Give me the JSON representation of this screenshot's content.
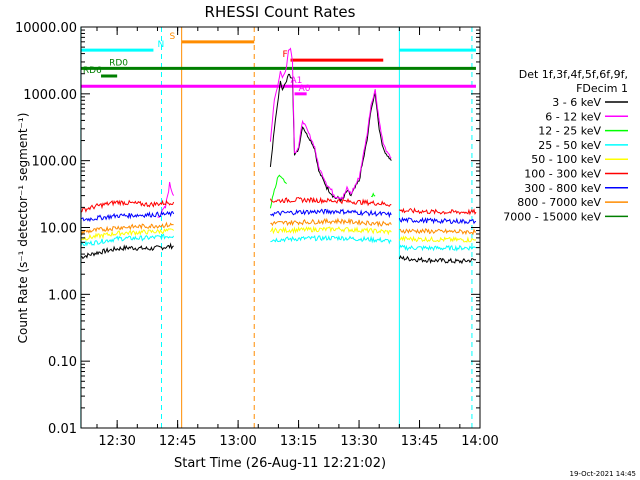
{
  "chart_data": {
    "type": "line",
    "title": "RHESSI Count Rates",
    "xlabel": "Start Time (26-Aug-11 12:21:02)",
    "ylabel": "Count Rate (s⁻¹ detector⁻¹ segment⁻¹)",
    "yscale": "log",
    "ylim": [
      0.01,
      10000
    ],
    "xlim": [
      "12:21:02",
      "14:00:00"
    ],
    "x_ticks": [
      "12:30",
      "12:45",
      "13:00",
      "13:15",
      "13:30",
      "13:45",
      "14:00"
    ],
    "y_ticks": [
      "0.01",
      "0.10",
      "1.00",
      "10.00",
      "100.00",
      "1000.00",
      "10000.00"
    ],
    "legend_header": [
      "Det 1f,3f,4f,5f,6f,9f,",
      "FDecim 1"
    ],
    "legend_position": "right",
    "grid": false,
    "series": [
      {
        "name": "3 - 6 keV",
        "color": "#000000",
        "segments": [
          {
            "x": [
              "12:21",
              "12:25",
              "12:30",
              "12:33",
              "12:38",
              "12:42",
              "12:44"
            ],
            "y": [
              3.6,
              4.2,
              4.8,
              5.0,
              4.8,
              5.1,
              5.3
            ]
          },
          {
            "x": [
              "13:08",
              "13:09",
              "13:10",
              "13:10.5",
              "13:11",
              "13:11.5",
              "13:12",
              "13:12.5",
              "13:13",
              "13:13.5",
              "13:14",
              "13:15",
              "13:16",
              "13:17",
              "13:18",
              "13:19",
              "13:20",
              "13:22",
              "13:24",
              "13:26",
              "13:27",
              "13:28",
              "13:30",
              "13:32",
              "13:33",
              "13:34",
              "13:35",
              "13:36",
              "13:37",
              "13:38"
            ],
            "y": [
              80,
              300,
              900,
              1500,
              1200,
              1350,
              1500,
              2000,
              1800,
              1800,
              120,
              150,
              330,
              250,
              200,
              150,
              70,
              40,
              28,
              26,
              35,
              30,
              50,
              200,
              600,
              1000,
              300,
              150,
              120,
              100
            ]
          },
          {
            "x": [
              "13:40",
              "13:45",
              "13:50",
              "13:55",
              "13:59"
            ],
            "y": [
              3.5,
              3.3,
              3.2,
              3.1,
              3.3
            ]
          }
        ]
      },
      {
        "name": "6 - 12 keV",
        "color": "#ff00ff",
        "segments": [
          {
            "x": [
              "12:40",
              "12:42",
              "12:43",
              "12:44"
            ],
            "y": [
              14,
              20,
              45,
              30
            ]
          },
          {
            "x": [
              "13:08",
              "13:09",
              "13:10",
              "13:10.5",
              "13:11",
              "13:11.5",
              "13:12",
              "13:12.5",
              "13:13",
              "13:13.5",
              "13:14",
              "13:15",
              "13:16",
              "13:17",
              "13:18",
              "13:19",
              "13:20",
              "13:22",
              "13:24",
              "13:26",
              "13:27",
              "13:28",
              "13:30",
              "13:32",
              "13:33",
              "13:34",
              "13:35",
              "13:36",
              "13:37",
              "13:38"
            ],
            "y": [
              200,
              800,
              1500,
              2200,
              1800,
              2000,
              2500,
              4500,
              5000,
              3000,
              130,
              160,
              400,
              300,
              220,
              160,
              80,
              45,
              30,
              28,
              38,
              32,
              55,
              250,
              700,
              1150,
              400,
              180,
              130,
              110
            ]
          }
        ]
      },
      {
        "name": "12 - 25 keV",
        "color": "#00ff00",
        "segments": [
          {
            "x": [
              "13:08",
              "13:09",
              "13:10",
              "13:11",
              "13:12"
            ],
            "y": [
              20,
              35,
              60,
              55,
              45
            ]
          },
          {
            "x": [
              "13:33",
              "13:33.5",
              "13:34"
            ],
            "y": [
              30,
              32,
              30
            ]
          }
        ]
      },
      {
        "name": "25 - 50 keV",
        "color": "#00ffff",
        "segments": [
          {
            "x": [
              "12:21",
              "12:30",
              "12:38",
              "12:44"
            ],
            "y": [
              5.5,
              6.8,
              7.0,
              7.5
            ]
          },
          {
            "x": [
              "13:08",
              "13:15",
              "13:25",
              "13:35",
              "13:38"
            ],
            "y": [
              6.5,
              6.8,
              7.0,
              6.5,
              6.2
            ]
          },
          {
            "x": [
              "13:40",
              "13:50",
              "13:59"
            ],
            "y": [
              5.0,
              4.9,
              5.0
            ]
          }
        ]
      },
      {
        "name": "50 - 100 keV",
        "color": "#ffff00",
        "segments": [
          {
            "x": [
              "12:21",
              "12:30",
              "12:38",
              "12:44"
            ],
            "y": [
              6.8,
              8.2,
              8.6,
              9.0
            ]
          },
          {
            "x": [
              "13:08",
              "13:15",
              "13:25",
              "13:35",
              "13:38"
            ],
            "y": [
              9.0,
              9.2,
              9.5,
              8.8,
              8.5
            ]
          },
          {
            "x": [
              "13:40",
              "13:50",
              "13:59"
            ],
            "y": [
              6.8,
              6.6,
              6.5
            ]
          }
        ]
      },
      {
        "name": "100 - 300 keV",
        "color": "#ff0000",
        "segments": [
          {
            "x": [
              "12:21",
              "12:25",
              "12:30",
              "12:38",
              "12:44"
            ],
            "y": [
              18,
              21,
              24,
              22,
              24
            ]
          },
          {
            "x": [
              "13:08",
              "13:15",
              "13:25",
              "13:35",
              "13:38"
            ],
            "y": [
              25,
              26,
              25,
              23,
              22
            ]
          },
          {
            "x": [
              "13:40",
              "13:50",
              "13:59"
            ],
            "y": [
              18,
              17,
              17
            ]
          }
        ]
      },
      {
        "name": "300 - 800 keV",
        "color": "#0000ff",
        "segments": [
          {
            "x": [
              "12:21",
              "12:30",
              "12:38",
              "12:44"
            ],
            "y": [
              13,
              15,
              15.5,
              16
            ]
          },
          {
            "x": [
              "13:08",
              "13:15",
              "13:25",
              "13:35",
              "13:38"
            ],
            "y": [
              16,
              17,
              17.5,
              16,
              15.5
            ]
          },
          {
            "x": [
              "13:40",
              "13:50",
              "13:59"
            ],
            "y": [
              13,
              12.5,
              12.3
            ]
          }
        ]
      },
      {
        "name": "800 - 7000 keV",
        "color": "#ff8c00",
        "segments": [
          {
            "x": [
              "12:21",
              "12:30",
              "12:38",
              "12:44"
            ],
            "y": [
              8.5,
              10,
              10.5,
              11
            ]
          },
          {
            "x": [
              "13:08",
              "13:15",
              "13:25",
              "13:35",
              "13:38"
            ],
            "y": [
              11.5,
              12,
              12.5,
              11.5,
              11
            ]
          },
          {
            "x": [
              "13:40",
              "13:50",
              "13:59"
            ],
            "y": [
              9,
              8.7,
              8.6
            ]
          }
        ]
      },
      {
        "name": "7000 - 15000 keV",
        "color": "#007f00",
        "segments": []
      }
    ],
    "markers": {
      "vertical_lines": [
        {
          "x": "12:21",
          "color": "#00ffff",
          "style": "solid"
        },
        {
          "x": "12:41",
          "color": "#00ffff",
          "style": "dashed"
        },
        {
          "x": "12:46",
          "color": "#ff8c00",
          "style": "solid"
        },
        {
          "x": "13:04",
          "color": "#ff8c00",
          "style": "dashed"
        },
        {
          "x": "13:40",
          "color": "#00ffff",
          "style": "solid"
        },
        {
          "x": "13:58",
          "color": "#00ffff",
          "style": "dashed"
        }
      ],
      "horizontal_bars": [
        {
          "label": "N",
          "color": "#00ffff",
          "x1": "12:21",
          "x2": "12:39",
          "y": 4500,
          "label_x": "12:40"
        },
        {
          "label": "",
          "color": "#00ffff",
          "x1": "13:40",
          "x2": "13:59",
          "y": 4500,
          "label_x": ""
        },
        {
          "label": "S",
          "color": "#ff8c00",
          "x1": "12:46",
          "x2": "13:04",
          "y": 6000,
          "label_x": "12:43"
        },
        {
          "label": "RD0",
          "color": "#007f00",
          "x1": "12:21",
          "x2": "13:59",
          "y": 2400,
          "label_x": "12:28"
        },
        {
          "label": "RD6",
          "color": "#007f00",
          "x1": "12:26",
          "x2": "12:30",
          "y": 1850,
          "label_x": "12:21.5"
        },
        {
          "label": "F",
          "color": "#ff0000",
          "x1": "13:13",
          "x2": "13:36",
          "y": 3200,
          "label_x": "13:11"
        },
        {
          "label": "A1",
          "color": "#ff00ff",
          "x1": "12:21",
          "x2": "13:59",
          "y": 1300,
          "label_x": "13:13"
        },
        {
          "label": "A0",
          "color": "#ff00ff",
          "x1": "13:14",
          "x2": "13:17",
          "y": 1000,
          "label_x": "13:15"
        }
      ]
    }
  },
  "footer": {
    "timestamp": "19-Oct-2021 14:45"
  }
}
